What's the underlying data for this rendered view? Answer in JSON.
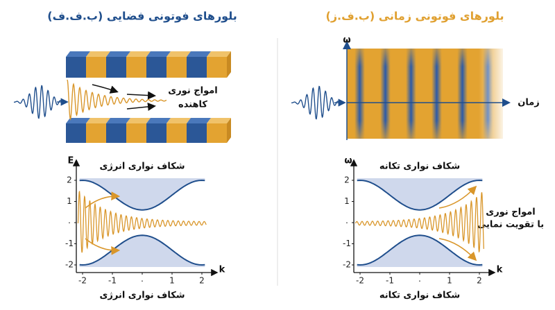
{
  "left": {
    "title": "بلورهای فوتونی فضایی (ب.ف.ف)",
    "annotation": [
      "امواج نوری",
      "کاهنده"
    ],
    "plot": {
      "title": "شکاف نواری انرژی",
      "y_axis": "E",
      "x_axis": "k",
      "yticks": [
        "2",
        "1",
        "٠",
        "-1",
        "-2"
      ],
      "xticks": [
        "-2",
        "-1",
        "٠",
        "1",
        "2"
      ]
    },
    "caption": "شکاف نواری انرژی"
  },
  "right": {
    "title": "بلورهای فوتونی زمانی (ب.ف.ز)",
    "top_y_axis": "ω",
    "top_x_axis": "زمان",
    "annotation": [
      "امواج نوری",
      "با تقویت نمایی"
    ],
    "plot": {
      "title": "شکاف نواری تکانه",
      "y_axis": "ω",
      "x_axis": "k",
      "yticks": [
        "2",
        "1",
        "٠",
        "-1",
        "-2"
      ],
      "xticks": [
        "-2",
        "-1",
        "٠",
        "1",
        "2"
      ]
    },
    "caption": "شکاف نواری تکانه"
  }
}
